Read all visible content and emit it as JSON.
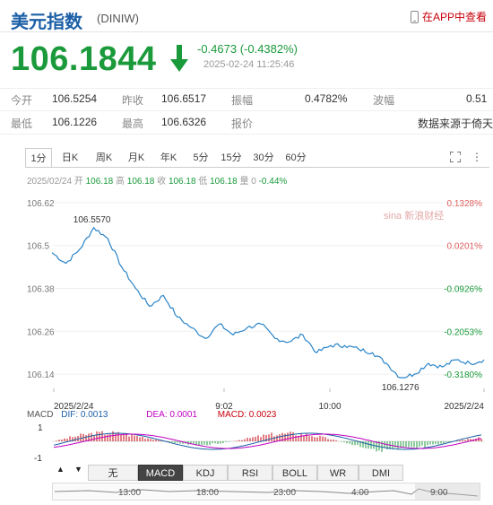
{
  "header": {
    "title": "美元指数",
    "code": "(DINIW)",
    "app_link": "在APP中查看"
  },
  "quote": {
    "price": "106.1844",
    "change": "-0.4673 (-0.4382%)",
    "timestamp": "2025-02-24 11:25:46",
    "trend_color": "#1a9a3b"
  },
  "stats": {
    "row1": [
      {
        "label": "今开",
        "value": "106.5254"
      },
      {
        "label": "昨收",
        "value": "106.6517"
      },
      {
        "label": "振幅",
        "value": "0.4782%"
      },
      {
        "label": "波幅",
        "value": "0.51"
      }
    ],
    "row2": [
      {
        "label": "最低",
        "value": "106.1226"
      },
      {
        "label": "最高",
        "value": "106.6326"
      },
      {
        "label": "报价",
        "value": ""
      },
      {
        "label": "",
        "value": "数据来源于倚天"
      }
    ]
  },
  "tabs": [
    "1分",
    "日K",
    "周K",
    "月K",
    "年K",
    "5分",
    "15分",
    "30分",
    "60分"
  ],
  "active_tab": "1分",
  "bar_info": {
    "date": "2025/02/24",
    "open_label": "开",
    "open": "106.18",
    "high_label": "高",
    "high": "106.18",
    "close_label": "收",
    "close": "106.18",
    "low_label": "低",
    "low": "106.18",
    "vol_label": "量",
    "vol": "0",
    "pct": "-0.44%"
  },
  "chart_data": {
    "type": "line",
    "y_ticks": [
      "106.62",
      "106.5",
      "106.38",
      "106.26",
      "106.14"
    ],
    "pct_ticks": [
      "0.1328%",
      "0.0201%",
      "-0.0926%",
      "-0.2053%",
      "-0.3180%"
    ],
    "x_ticks": [
      "2025/2/24",
      "9:02",
      "10:00",
      "2025/2/24"
    ],
    "ylim": [
      106.1,
      106.64
    ],
    "max_label": "106.5570",
    "min_label": "106.1276",
    "x": [
      "07:48",
      "07:55",
      "08:02",
      "08:09",
      "08:16",
      "08:23",
      "08:30",
      "08:37",
      "08:44",
      "08:51",
      "08:58",
      "09:05",
      "09:12",
      "09:19",
      "09:26",
      "09:33",
      "09:40",
      "09:47",
      "09:54",
      "10:01",
      "10:08",
      "10:15",
      "10:22",
      "10:29",
      "10:36",
      "10:43",
      "10:50",
      "10:57",
      "11:04",
      "11:11",
      "11:18",
      "11:25"
    ],
    "series": [
      {
        "values": [
          106.48,
          106.45,
          106.49,
          106.55,
          106.52,
          106.44,
          106.38,
          106.33,
          106.36,
          106.3,
          106.27,
          106.24,
          106.28,
          106.25,
          106.27,
          106.28,
          106.24,
          106.23,
          106.25,
          106.2,
          106.22,
          106.22,
          106.21,
          106.2,
          106.17,
          106.13,
          106.14,
          106.17,
          106.16,
          106.18,
          106.17,
          106.18
        ]
      }
    ],
    "watermark": "sina 新浪财经"
  },
  "macd": {
    "name": "MACD",
    "dif_label": "DIF: 0.0013",
    "dea_label": "DEA: 0.0001",
    "macd_label": "MACD: 0.0023",
    "y_ticks": [
      "1",
      "-1"
    ]
  },
  "indicator_buttons": [
    "无",
    "MACD",
    "KDJ",
    "RSI",
    "BOLL",
    "WR",
    "DMI"
  ],
  "active_indicator": "MACD",
  "navigator": {
    "labels": [
      "13:00",
      "18:00",
      "23:00",
      "4:00",
      "9:00"
    ]
  }
}
